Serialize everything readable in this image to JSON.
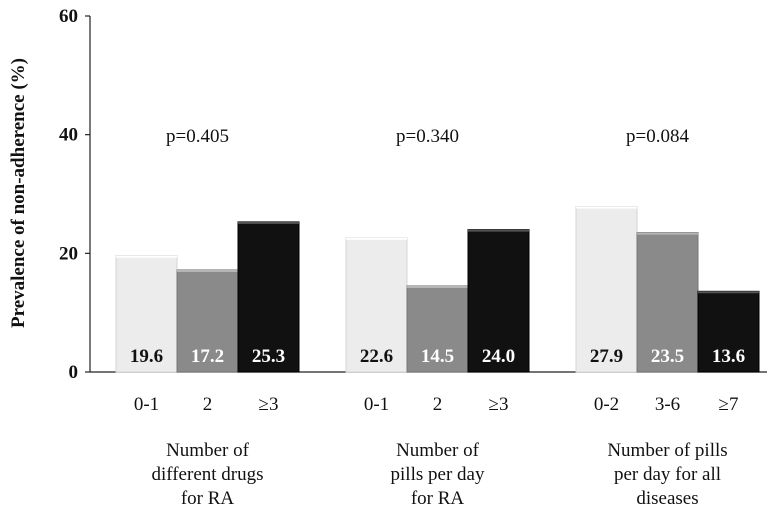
{
  "chart_data": {
    "type": "bar",
    "ylabel": "Prevalence of non-adherence (%)",
    "ylim": [
      0,
      60
    ],
    "yticks": [
      "0",
      "20",
      "40",
      "60"
    ],
    "grid": false,
    "colors": [
      "#ececec",
      "#8a8a8a",
      "#111111"
    ],
    "groups": [
      {
        "label_lines": [
          "Number of",
          "different drugs",
          "for RA"
        ],
        "p_value": "p=0.405",
        "categories": [
          "0-1",
          "2",
          "≥3"
        ],
        "values": [
          19.6,
          17.2,
          25.3
        ],
        "value_labels": [
          "19.6",
          "17.2",
          "25.3"
        ]
      },
      {
        "label_lines": [
          "Number of",
          "pills per day",
          "for RA"
        ],
        "p_value": "p=0.340",
        "categories": [
          "0-1",
          "2",
          "≥3"
        ],
        "values": [
          22.6,
          14.5,
          24.0
        ],
        "value_labels": [
          "22.6",
          "14.5",
          "24.0"
        ]
      },
      {
        "label_lines": [
          "Number of pills",
          "per day for all",
          "diseases"
        ],
        "p_value": "p=0.084",
        "categories": [
          "0-2",
          "3-6",
          "≥7"
        ],
        "values": [
          27.9,
          23.5,
          13.6
        ],
        "value_labels": [
          "27.9",
          "23.5",
          "13.6"
        ]
      }
    ]
  }
}
